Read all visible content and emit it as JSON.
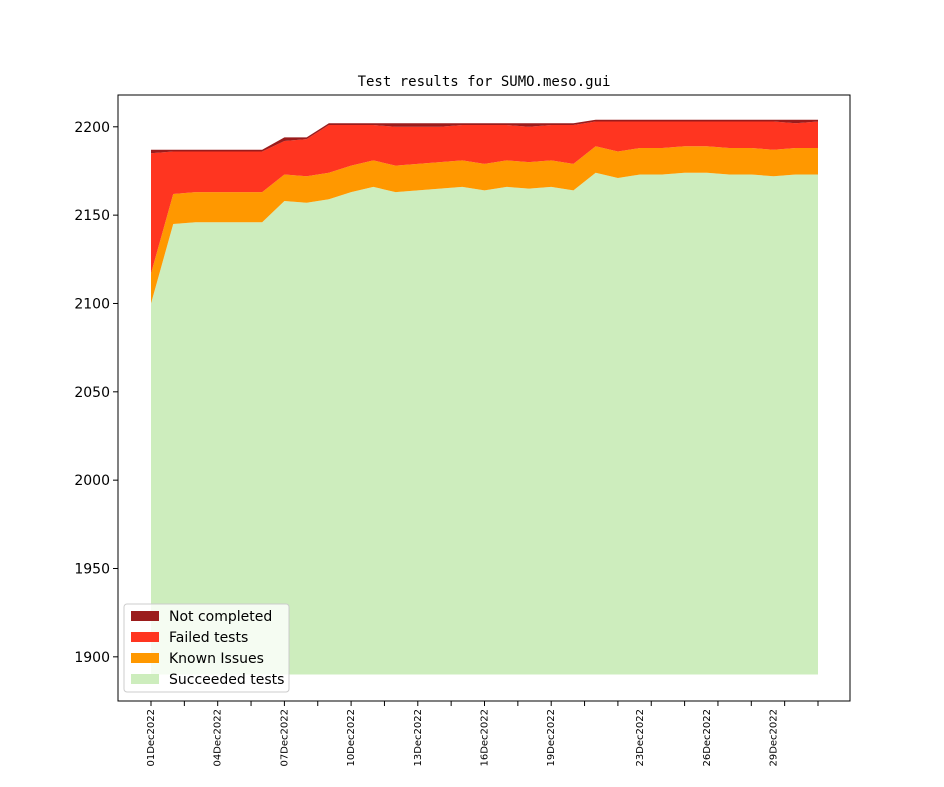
{
  "chart_data": {
    "type": "area",
    "stacked": true,
    "title": "Test results for SUMO.meso.gui",
    "xlabel": "",
    "ylabel": "",
    "ylim": [
      1875,
      2218
    ],
    "yticks": [
      1900,
      1950,
      2000,
      2050,
      2100,
      2150,
      2200
    ],
    "x": [
      "01Dec2022",
      "02Dec2022",
      "03Dec2022",
      "04Dec2022",
      "05Dec2022",
      "06Dec2022",
      "07Dec2022",
      "08Dec2022",
      "09Dec2022",
      "10Dec2022",
      "11Dec2022",
      "12Dec2022",
      "13Dec2022",
      "14Dec2022",
      "15Dec2022",
      "16Dec2022",
      "17Dec2022",
      "18Dec2022",
      "19Dec2022",
      "20Dec2022",
      "21Dec2022",
      "22Dec2022",
      "23Dec2022",
      "24Dec2022",
      "25Dec2022",
      "26Dec2022",
      "27Dec2022",
      "28Dec2022",
      "29Dec2022",
      "30Dec2022",
      "31Dec2022"
    ],
    "xtick_labels": [
      "01Dec2022",
      "04Dec2022",
      "07Dec2022",
      "10Dec2022",
      "13Dec2022",
      "16Dec2022",
      "19Dec2022",
      "23Dec2022",
      "26Dec2022",
      "29Dec2022"
    ],
    "baseline": 1890,
    "series": [
      {
        "name": "Succeeded tests",
        "color": "#cdedbd",
        "top": [
          2100,
          2145,
          2146,
          2146,
          2146,
          2146,
          2158,
          2157,
          2159,
          2163,
          2166,
          2163,
          2164,
          2165,
          2166,
          2164,
          2166,
          2165,
          2166,
          2164,
          2174,
          2171,
          2173,
          2173,
          2174,
          2174,
          2173,
          2173,
          2172,
          2173,
          2173
        ]
      },
      {
        "name": "Known Issues",
        "color": "#ff9800",
        "top": [
          2117,
          2162,
          2163,
          2163,
          2163,
          2163,
          2173,
          2172,
          2174,
          2178,
          2181,
          2178,
          2179,
          2180,
          2181,
          2179,
          2181,
          2180,
          2181,
          2179,
          2189,
          2186,
          2188,
          2188,
          2189,
          2189,
          2188,
          2188,
          2187,
          2188,
          2188
        ]
      },
      {
        "name": "Failed tests",
        "color": "#ff3520",
        "top": [
          2185,
          2186,
          2186,
          2186,
          2186,
          2186,
          2192,
          2193,
          2201,
          2201,
          2201,
          2200,
          2200,
          2200,
          2201,
          2201,
          2201,
          2200,
          2201,
          2201,
          2203,
          2203,
          2203,
          2203,
          2203,
          2203,
          2203,
          2203,
          2203,
          2202,
          2203
        ]
      },
      {
        "name": "Not completed",
        "color": "#9b1c1c",
        "top": [
          2187,
          2187,
          2187,
          2187,
          2187,
          2187,
          2194,
          2194,
          2202,
          2202,
          2202,
          2202,
          2202,
          2202,
          2202,
          2202,
          2202,
          2202,
          2202,
          2202,
          2204,
          2204,
          2204,
          2204,
          2204,
          2204,
          2204,
          2204,
          2204,
          2204,
          2204
        ]
      }
    ],
    "legend": {
      "placement": "lower-left",
      "entries": [
        {
          "label": "Not completed",
          "color": "#9b1c1c"
        },
        {
          "label": "Failed tests",
          "color": "#ff3520"
        },
        {
          "label": "Known Issues",
          "color": "#ff9800"
        },
        {
          "label": "Succeeded tests",
          "color": "#cdedbd"
        }
      ]
    },
    "grid": false
  }
}
